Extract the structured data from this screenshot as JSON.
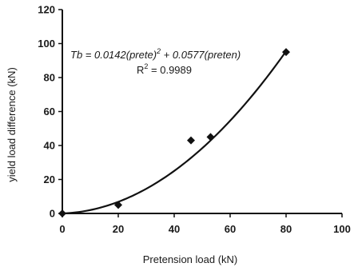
{
  "chart_data": {
    "type": "scatter",
    "title": "",
    "xlabel": "Pretension load (kN)",
    "ylabel": "yield load difference (kN)",
    "xlim": [
      0,
      100
    ],
    "ylim": [
      0,
      120
    ],
    "xticks": [
      "0",
      "20",
      "40",
      "60",
      "80",
      "100"
    ],
    "yticks": [
      "0",
      "20",
      "40",
      "60",
      "80",
      "100",
      "120"
    ],
    "grid": false,
    "legend": "none",
    "series": [
      {
        "points": [
          {
            "x": 0,
            "y": 0
          },
          {
            "x": 20,
            "y": 5
          },
          {
            "x": 46,
            "y": 43
          },
          {
            "x": 53,
            "y": 45
          },
          {
            "x": 80,
            "y": 95
          }
        ]
      }
    ],
    "trendline": {
      "type": "polynomial",
      "coefficients": {
        "a2": 0.0142,
        "a1": 0.0577,
        "a0": 0
      },
      "x_range": [
        0,
        80
      ]
    },
    "annotations": {
      "equation_left": "Tb = 0.0142(prete)",
      "equation_exponent": "2",
      "equation_right": " + 0.0577(preten)",
      "r2_label": "R",
      "r2_exponent": "2",
      "r2_value": " = 0.9989"
    },
    "colors": {
      "marker": "#111111",
      "line": "#111111",
      "axis": "#111111"
    }
  }
}
